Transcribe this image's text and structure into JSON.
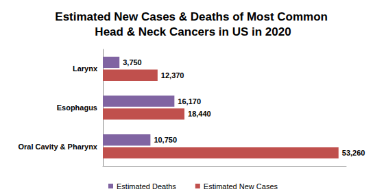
{
  "chart_data": {
    "type": "bar",
    "title": "Estimated New Cases & Deaths of Most Common Head & Neck Cancers in US in 2020",
    "orientation": "horizontal",
    "categories": [
      "Oral Cavity & Pharynx",
      "Esophagus",
      "Larynx"
    ],
    "series": [
      {
        "name": "Estimated Deaths",
        "color": "#8064a2",
        "values": [
          10750,
          16170,
          3750
        ],
        "value_labels": [
          "10,750",
          "16,170",
          "3,750"
        ]
      },
      {
        "name": "Estimated New Cases",
        "color": "#c0504d",
        "values": [
          53260,
          18440,
          12370
        ],
        "value_labels": [
          "53,260",
          "18,440",
          "12,370"
        ]
      }
    ],
    "xlim": [
      0,
      55000
    ],
    "data_labels": true,
    "legend": "bottom",
    "grid": false,
    "tick_labels": "y"
  }
}
